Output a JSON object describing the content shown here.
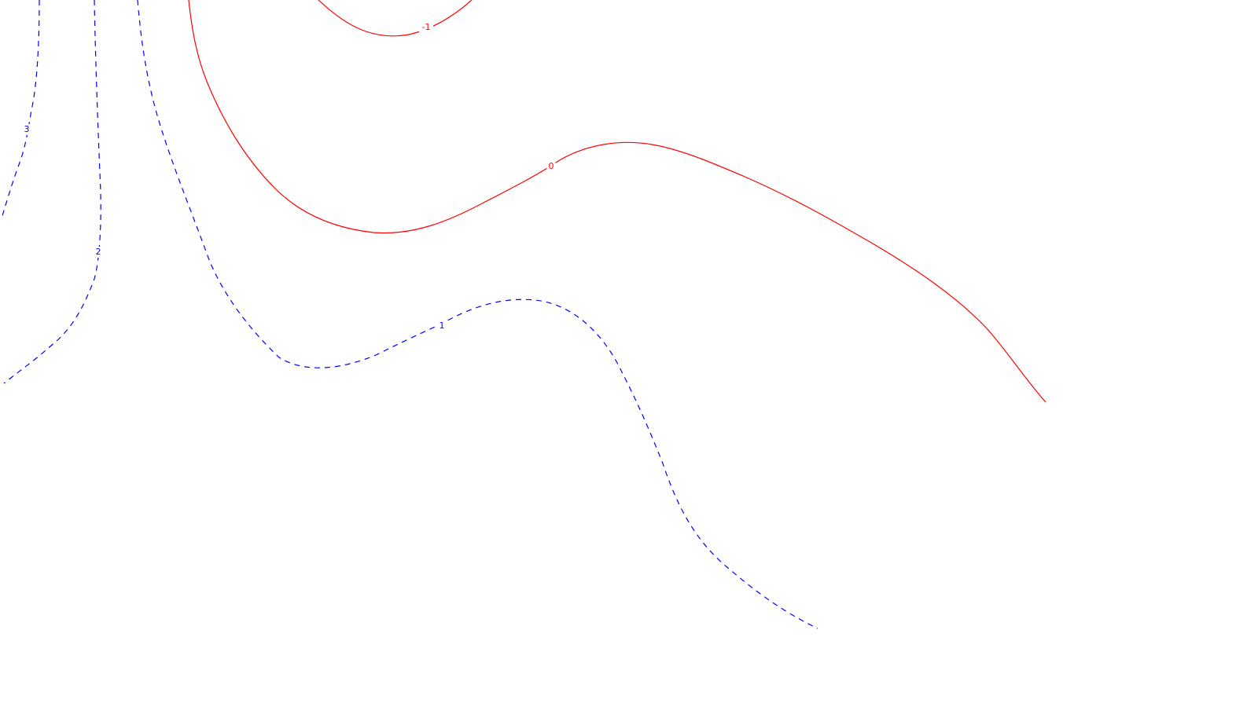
{
  "chart_data": {
    "type": "contour",
    "title": "",
    "xlabel": "",
    "ylabel": "",
    "colors": {
      "negative": "#ff0000",
      "zero": "#ff0000",
      "positive": "#0000ff",
      "background": "#ffffff"
    },
    "levels": [
      {
        "value": -1,
        "label": "-1",
        "style": "solid"
      },
      {
        "value": 0,
        "label": "0",
        "style": "solid"
      },
      {
        "value": 1,
        "label": "1",
        "style": "dashed"
      },
      {
        "value": 2,
        "label": "2",
        "style": "dashed"
      },
      {
        "value": 3,
        "label": "3",
        "style": "dashed"
      }
    ]
  }
}
